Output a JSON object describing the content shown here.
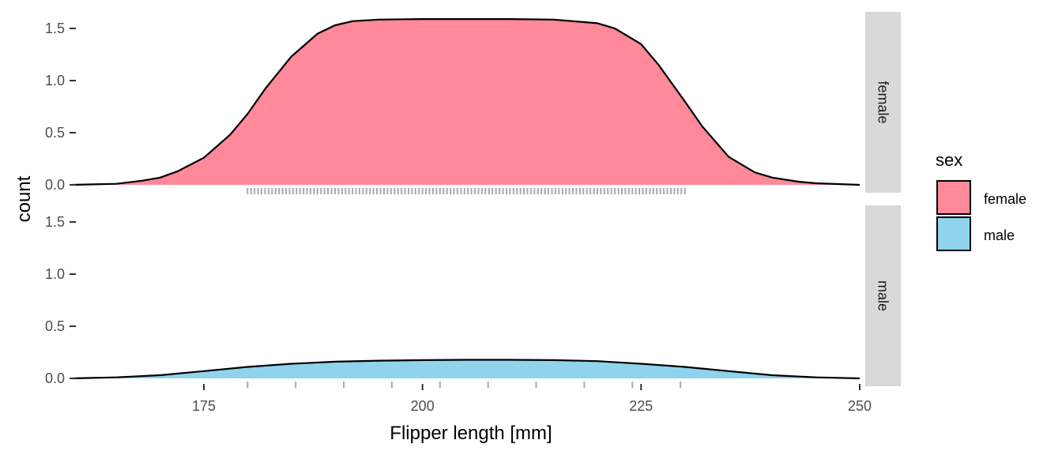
{
  "chart_data": {
    "type": "area",
    "xlabel": "Flipper length [mm]",
    "ylabel": "count",
    "xlim": [
      160,
      250
    ],
    "ylim": [
      0,
      1.6
    ],
    "x_ticks": [
      175,
      200,
      225,
      250
    ],
    "y_ticks": [
      0.0,
      0.5,
      1.0,
      1.5
    ],
    "y_tick_labels": [
      "0.0",
      "0.5",
      "1.0",
      "1.5"
    ],
    "grid": false,
    "facets": [
      "female",
      "male"
    ],
    "legend": {
      "title": "sex",
      "position": "right",
      "entries": [
        {
          "label": "female",
          "color": "#FF8899"
        },
        {
          "label": "male",
          "color": "#8FD3EC"
        }
      ]
    },
    "series": [
      {
        "name": "female",
        "color": "#FF8899",
        "x": [
          160,
          165,
          168,
          170,
          172,
          175,
          178,
          180,
          182,
          185,
          188,
          190,
          192,
          195,
          200,
          205,
          210,
          215,
          220,
          222,
          225,
          227,
          230,
          232,
          235,
          238,
          240,
          243,
          245,
          250
        ],
        "y": [
          0.0,
          0.01,
          0.04,
          0.07,
          0.13,
          0.26,
          0.48,
          0.68,
          0.92,
          1.23,
          1.45,
          1.53,
          1.57,
          1.585,
          1.59,
          1.59,
          1.59,
          1.585,
          1.55,
          1.5,
          1.35,
          1.15,
          0.8,
          0.56,
          0.27,
          0.12,
          0.07,
          0.03,
          0.015,
          0.0
        ]
      },
      {
        "name": "male",
        "color": "#8FD3EC",
        "x": [
          160,
          165,
          170,
          175,
          180,
          185,
          190,
          195,
          200,
          205,
          210,
          215,
          220,
          225,
          230,
          235,
          240,
          245,
          250
        ],
        "y": [
          0.0,
          0.01,
          0.03,
          0.07,
          0.11,
          0.14,
          0.16,
          0.17,
          0.175,
          0.178,
          0.178,
          0.175,
          0.165,
          0.14,
          0.11,
          0.07,
          0.03,
          0.01,
          0.0
        ]
      }
    ],
    "rugs": {
      "female": [
        180.0,
        180.4,
        180.8,
        181.2,
        181.6,
        182.0,
        182.4,
        182.8,
        183.2,
        183.6,
        184.0,
        184.4,
        184.8,
        185.2,
        185.6,
        186.0,
        186.4,
        186.8,
        187.2,
        187.6,
        188.0,
        188.4,
        188.8,
        189.2,
        189.6,
        190.0,
        190.4,
        190.8,
        191.2,
        191.6,
        192.0,
        192.4,
        192.8,
        193.2,
        193.6,
        194.0,
        194.4,
        194.8,
        195.2,
        195.6,
        196.0,
        196.4,
        196.8,
        197.2,
        197.6,
        198.0,
        198.4,
        198.8,
        199.2,
        199.6,
        200.0,
        200.4,
        200.8,
        201.2,
        201.6,
        202.0,
        202.4,
        202.8,
        203.2,
        203.6,
        204.0,
        204.4,
        204.8,
        205.2,
        205.6,
        206.0,
        206.4,
        206.8,
        207.2,
        207.6,
        208.0,
        208.4,
        208.8,
        209.2,
        209.6,
        210.0,
        210.4,
        210.8,
        211.2,
        211.6,
        212.0,
        212.4,
        212.8,
        213.2,
        213.6,
        214.0,
        214.4,
        214.8,
        215.2,
        215.6,
        216.0,
        216.4,
        216.8,
        217.2,
        217.6,
        218.0,
        218.4,
        218.8,
        219.2,
        219.6,
        220.0,
        220.4,
        220.8,
        221.2,
        221.6,
        222.0,
        222.4,
        222.8,
        223.2,
        223.6,
        224.0,
        224.4,
        224.8,
        225.2,
        225.6,
        226.0,
        226.4,
        226.8,
        227.2,
        227.6,
        228.0,
        228.4,
        228.8,
        229.2,
        229.6,
        230.0
      ],
      "male": [
        180.0,
        185.5,
        191.0,
        196.5,
        202.0,
        207.5,
        213.0,
        218.5,
        224.0,
        229.5
      ]
    }
  }
}
